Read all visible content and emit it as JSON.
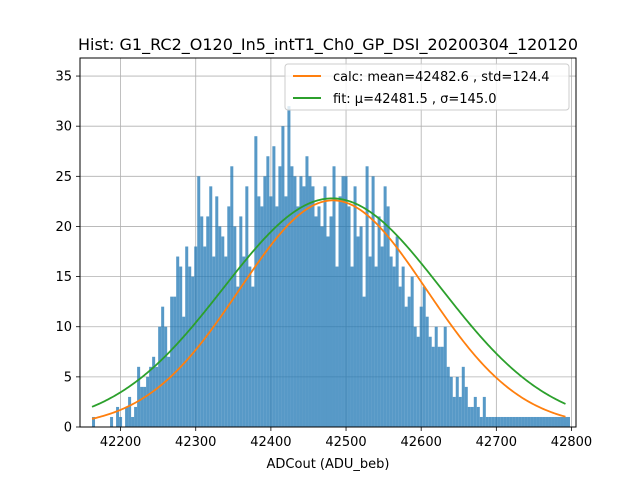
{
  "chart_data": {
    "type": "bar",
    "title": "Hist: G1_RC2_O120_In5_intT1_Ch0_GP_DSI_20200304_120120",
    "xlabel": "ADCout (ADU_beb)",
    "ylabel": "",
    "xlim": [
      42146,
      42806
    ],
    "ylim": [
      0,
      36.8
    ],
    "xticks": [
      42200,
      42300,
      42400,
      42500,
      42600,
      42700,
      42800
    ],
    "yticks": [
      0,
      5,
      10,
      15,
      20,
      25,
      30,
      35
    ],
    "grid": true,
    "legend_position": "top-right",
    "colors": {
      "bars": "#1f77b4",
      "calc": "#ff7f0e",
      "fit": "#2ca02c"
    },
    "bins": {
      "start": 42162,
      "width": 4.0,
      "counts": [
        1,
        0,
        0,
        0,
        0,
        0,
        1,
        0,
        2,
        1,
        0,
        2,
        3,
        1,
        2,
        6,
        4,
        4,
        5,
        6,
        7,
        6,
        10,
        12,
        10,
        7,
        13,
        13,
        17,
        16,
        11,
        18,
        16,
        15,
        18,
        25,
        21,
        18,
        21,
        24,
        17,
        23,
        20,
        19,
        17,
        22,
        26,
        20,
        14,
        21,
        17,
        24,
        16,
        14,
        29,
        23,
        22,
        25,
        27,
        23,
        28,
        22,
        26,
        30,
        23,
        32,
        26,
        25,
        22,
        25,
        24,
        27,
        25,
        24,
        21,
        22,
        20,
        24,
        19,
        21,
        26,
        16,
        23,
        25,
        25,
        22,
        16,
        24,
        19,
        20,
        13,
        26,
        17,
        25,
        16,
        21,
        18,
        24,
        22,
        17,
        16,
        19,
        14,
        16,
        12,
        13,
        15,
        10,
        9,
        12,
        14,
        11,
        9,
        8,
        10,
        8,
        8,
        10,
        6,
        5,
        3,
        5,
        3,
        6,
        4,
        2,
        2,
        3,
        2,
        1,
        3,
        1,
        1,
        1,
        1,
        1,
        1,
        1,
        1,
        1,
        1,
        1,
        1,
        1,
        1,
        1,
        1,
        1,
        1,
        1,
        1,
        1,
        1,
        1,
        1,
        1,
        1,
        1,
        1
      ]
    },
    "series": [
      {
        "name": "calc: mean=42482.6 , std=124.4",
        "type": "gaussian",
        "mean": 42482.6,
        "std": 124.4,
        "peak": 22.6,
        "x_range": [
          42162,
          42792
        ]
      },
      {
        "name": "fit: μ=42481.5 , σ=145.0",
        "type": "gaussian",
        "mean": 42481.5,
        "std": 145.0,
        "peak": 22.8,
        "x_range": [
          42162,
          42792
        ]
      }
    ]
  }
}
